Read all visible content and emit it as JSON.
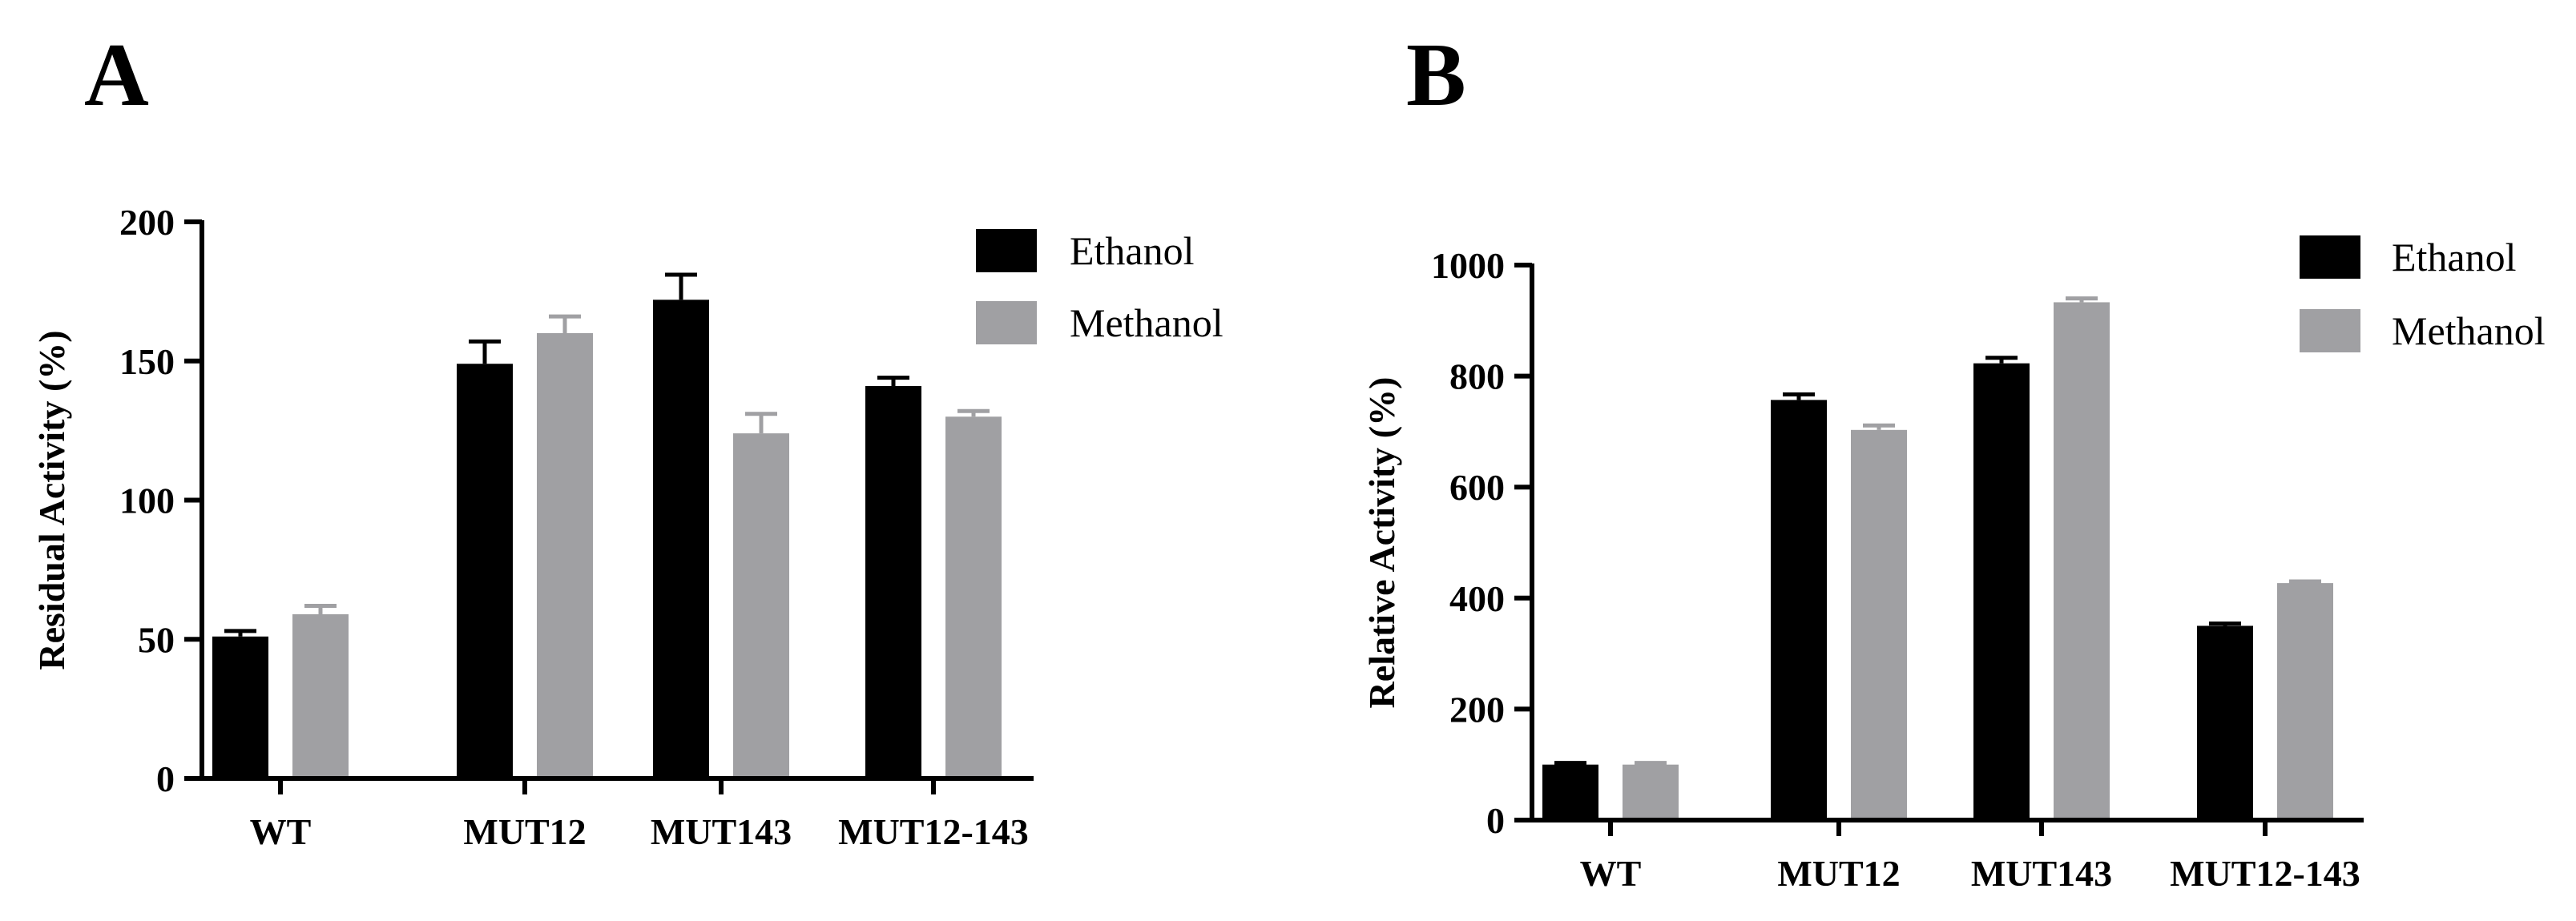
{
  "panels": [
    {
      "letter": "A"
    },
    {
      "letter": "B"
    }
  ],
  "chart_data": [
    {
      "type": "bar",
      "panel": "A",
      "title": "",
      "xlabel": "",
      "ylabel": "Residual Activity (%)",
      "ylim": [
        0,
        200
      ],
      "yticks": [
        0,
        50,
        100,
        150,
        200
      ],
      "categories": [
        "WT",
        "MUT12",
        "MUT143",
        "MUT12-143"
      ],
      "series": [
        {
          "name": "Ethanol",
          "color": "#000000",
          "errcolor": "#000000",
          "values": [
            51,
            149,
            172,
            141
          ],
          "errors": [
            2,
            8,
            9,
            3
          ]
        },
        {
          "name": "Methanol",
          "color": "#a0a0a3",
          "errcolor": "#a0a0a3",
          "values": [
            59,
            160,
            124,
            130
          ],
          "errors": [
            3,
            6,
            7,
            2
          ]
        }
      ],
      "grid": false,
      "legend_position": "top-right"
    },
    {
      "type": "bar",
      "panel": "B",
      "title": "",
      "xlabel": "",
      "ylabel": "Relative Activity (%)",
      "ylim": [
        0,
        1000
      ],
      "yticks": [
        0,
        200,
        400,
        600,
        800,
        1000
      ],
      "categories": [
        "WT",
        "MUT12",
        "MUT143",
        "MUT12-143"
      ],
      "series": [
        {
          "name": "Ethanol",
          "color": "#000000",
          "errcolor": "#000000",
          "values": [
            100,
            757,
            823,
            350
          ],
          "errors": [
            3,
            10,
            10,
            4
          ]
        },
        {
          "name": "Methanol",
          "color": "#a0a0a3",
          "errcolor": "#a0a0a3",
          "values": [
            100,
            703,
            933,
            427
          ],
          "errors": [
            3,
            8,
            7,
            3
          ]
        }
      ],
      "grid": false,
      "legend_position": "top-right"
    }
  ]
}
